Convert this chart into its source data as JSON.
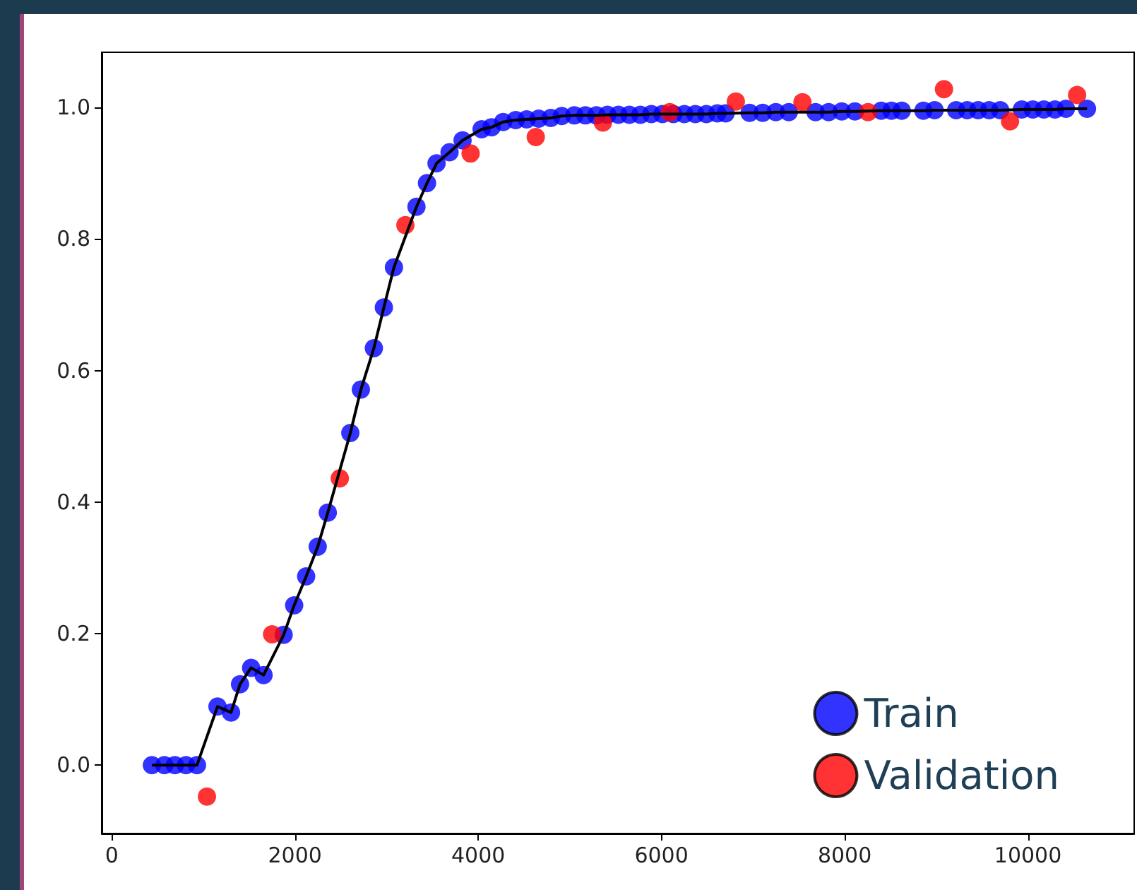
{
  "chart_data": {
    "type": "scatter",
    "series": [
      {
        "name": "Train",
        "color": "#0000ff",
        "x": [
          438,
          574,
          689,
          810,
          930,
          1154,
          1302,
          1400,
          1521,
          1657,
          1876,
          1991,
          2122,
          2248,
          2358,
          2604,
          2719,
          2861,
          2970,
          3080,
          3326,
          3441,
          3545,
          3687,
          3829,
          4037,
          4146,
          4272,
          4409,
          4529,
          4660,
          4792,
          4912,
          5049,
          5170,
          5290,
          5410,
          5530,
          5650,
          5770,
          5890,
          6010,
          6130,
          6250,
          6370,
          6490,
          6610,
          6700,
          6962,
          7105,
          7248,
          7390,
          7682,
          7825,
          7968,
          8112,
          8399,
          8511,
          8623,
          8859,
          8982,
          9217,
          9337,
          9457,
          9577,
          9698,
          9934,
          10054,
          10174,
          10295,
          10415,
          10645
        ],
        "values": [
          0,
          0,
          0,
          0,
          0,
          0.089,
          0.08,
          0.123,
          0.148,
          0.137,
          0.198,
          0.243,
          0.287,
          0.332,
          0.384,
          0.505,
          0.571,
          0.634,
          0.696,
          0.757,
          0.849,
          0.885,
          0.915,
          0.932,
          0.95,
          0.967,
          0.97,
          0.978,
          0.981,
          0.982,
          0.983,
          0.984,
          0.987,
          0.988,
          0.988,
          0.988,
          0.989,
          0.989,
          0.989,
          0.989,
          0.99,
          0.99,
          0.99,
          0.99,
          0.99,
          0.99,
          0.991,
          0.991,
          0.992,
          0.992,
          0.993,
          0.993,
          0.993,
          0.993,
          0.994,
          0.994,
          0.995,
          0.995,
          0.995,
          0.995,
          0.996,
          0.996,
          0.996,
          0.996,
          0.996,
          0.996,
          0.997,
          0.997,
          0.997,
          0.997,
          0.998,
          0.998
        ]
      },
      {
        "type": "line",
        "marker": "none",
        "color": "#000000",
        "x": [
          438,
          574,
          689,
          810,
          930,
          1154,
          1302,
          1400,
          1521,
          1657,
          1876,
          1991,
          2122,
          2248,
          2358,
          2604,
          2719,
          2861,
          2970,
          3080,
          3326,
          3441,
          3545,
          3687,
          3829,
          4037,
          4146,
          4272,
          4409,
          4529,
          4660,
          4792,
          4912,
          5049,
          5170,
          5290,
          5410,
          5530,
          5650,
          5770,
          5890,
          6010,
          6130,
          6250,
          6370,
          6490,
          6610,
          6700,
          6962,
          7105,
          7248,
          7390,
          7682,
          7825,
          7968,
          8112,
          8399,
          8511,
          8623,
          8859,
          8982,
          9217,
          9337,
          9457,
          9577,
          9698,
          9934,
          10054,
          10174,
          10295,
          10415,
          10645
        ],
        "values": [
          0,
          0,
          0,
          0,
          0,
          0.089,
          0.08,
          0.123,
          0.148,
          0.137,
          0.198,
          0.243,
          0.287,
          0.332,
          0.384,
          0.505,
          0.571,
          0.634,
          0.696,
          0.757,
          0.849,
          0.885,
          0.915,
          0.932,
          0.95,
          0.967,
          0.97,
          0.978,
          0.981,
          0.982,
          0.983,
          0.984,
          0.987,
          0.988,
          0.988,
          0.988,
          0.989,
          0.989,
          0.989,
          0.989,
          0.99,
          0.99,
          0.99,
          0.99,
          0.99,
          0.99,
          0.991,
          0.991,
          0.992,
          0.992,
          0.993,
          0.993,
          0.993,
          0.993,
          0.994,
          0.994,
          0.995,
          0.995,
          0.995,
          0.995,
          0.996,
          0.996,
          0.996,
          0.996,
          0.996,
          0.996,
          0.997,
          0.997,
          0.997,
          0.997,
          0.998,
          0.998
        ]
      },
      {
        "name": "Validation",
        "color": "#ff0000",
        "x": [
          1039,
          1750,
          2489,
          3205,
          3917,
          4628,
          5361,
          6091,
          6812,
          7539,
          8255,
          9084,
          9805,
          10537
        ],
        "values": [
          -0.048,
          0.199,
          0.436,
          0.821,
          0.93,
          0.955,
          0.977,
          0.993,
          1.009,
          1.008,
          0.993,
          1.028,
          0.979,
          1.019
        ]
      }
    ],
    "xlim": [
      -110,
      11160
    ],
    "xticks": [
      0,
      2000,
      4000,
      6000,
      8000,
      10000
    ],
    "ylim": [
      -0.104,
      1.084
    ],
    "yticks": [
      {
        "value": 0,
        "label": "0.0"
      },
      0.2,
      0.4,
      0.6,
      0.8,
      {
        "value": 1,
        "label": "1.0"
      }
    ],
    "marker": "circle",
    "legend": "bottom right",
    "grid": false
  }
}
